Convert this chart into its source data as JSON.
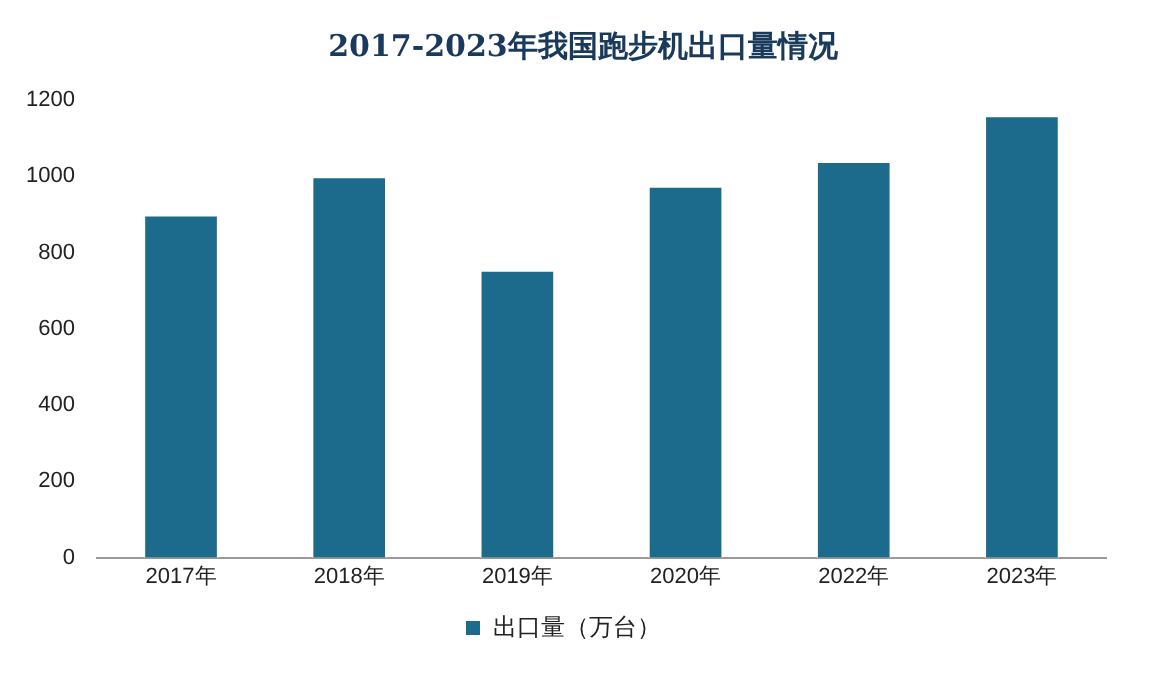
{
  "chart_data": {
    "type": "bar",
    "title": "2017-2023年我国跑步机出口量情况",
    "categories": [
      "2017年",
      "2018年",
      "2019年",
      "2020年",
      "2022年",
      "2023年"
    ],
    "series": [
      {
        "name": "出口量（万台）",
        "color": "#1c6a8c",
        "values": [
          900,
          1000,
          755,
          975,
          1040,
          1160
        ]
      }
    ],
    "ylim": [
      0,
      1200
    ],
    "yticks": [
      0,
      200,
      400,
      600,
      800,
      1000,
      1200
    ],
    "grid": false,
    "legend": "bottom"
  }
}
